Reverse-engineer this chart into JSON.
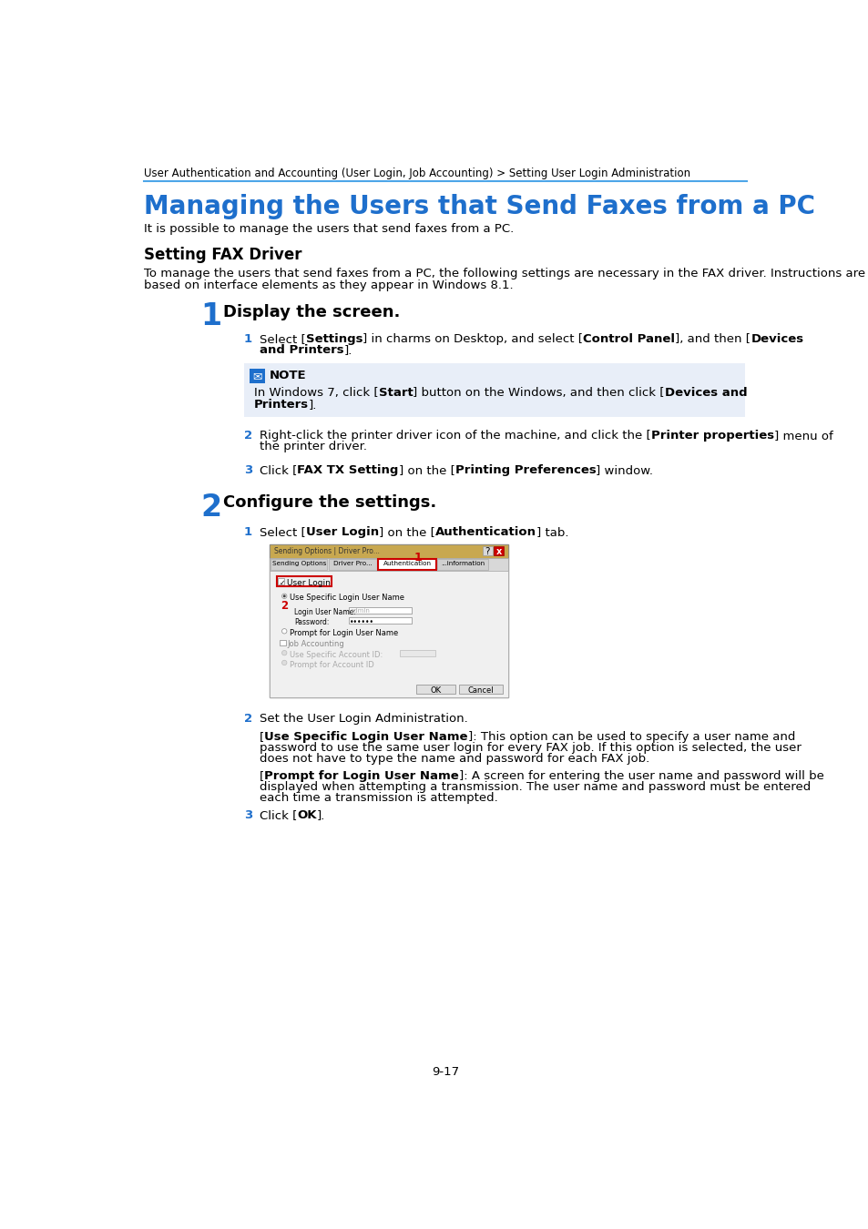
{
  "page_bg": "#ffffff",
  "breadcrumb": "User Authentication and Accounting (User Login, Job Accounting) > Setting User Login Administration",
  "breadcrumb_color": "#000000",
  "breadcrumb_fontsize": 8.5,
  "separator_color": "#4da6e8",
  "title": "Managing the Users that Send Faxes from a PC",
  "title_color": "#1e6fcc",
  "title_fontsize": 20,
  "intro_text": "It is possible to manage the users that send faxes from a PC.",
  "section_heading": "Setting FAX Driver",
  "section_heading_fontsize": 12,
  "body_text1a": "To manage the users that send faxes from a PC, the following settings are necessary in the FAX driver. Instructions are",
  "body_text1b": "based on interface elements as they appear in Windows 8.1.",
  "step1_title": "Display the screen.",
  "step2_title": "Configure the settings.",
  "step2_sub2_text": "Set the User Login Administration.",
  "note_bg": "#e8eef8",
  "page_num": "9-17",
  "step_num_color": "#1e6fcc",
  "sub_num_color": "#1e6fcc",
  "body_fontsize": 9.5,
  "step_title_fontsize": 13,
  "note_icon_color": "#1e6fcc",
  "dialog_title_bar_color": "#c8a850",
  "dialog_bg": "#f0f0f0",
  "red_highlight": "#cc0000"
}
